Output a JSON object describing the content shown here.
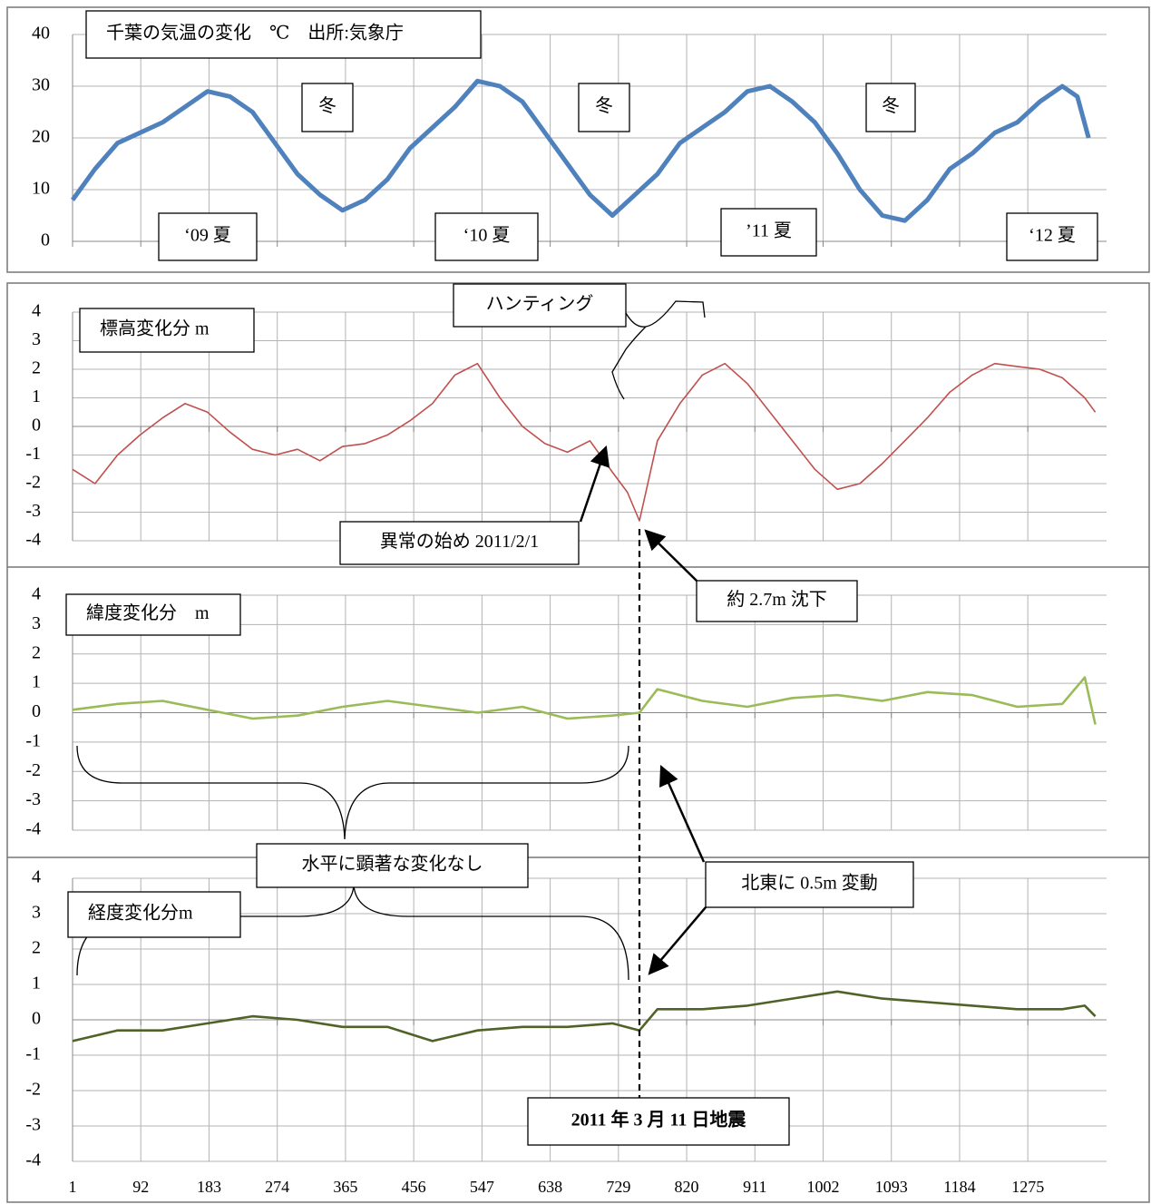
{
  "chart_data": [
    {
      "type": "line",
      "title": "千葉の気温の変化　℃　出所:気象庁",
      "annotations": [
        "冬",
        "冬",
        "冬",
        "‘09 夏",
        "‘10 夏",
        "’11 夏",
        "‘12 夏"
      ],
      "color": "#4f81bd",
      "grid": true,
      "x": [
        1,
        31,
        61,
        91,
        121,
        151,
        181,
        211,
        241,
        271,
        301,
        331,
        361,
        391,
        421,
        451,
        481,
        511,
        541,
        571,
        601,
        631,
        661,
        691,
        721,
        751,
        781,
        811,
        841,
        871,
        901,
        931,
        961,
        991,
        1021,
        1051,
        1081,
        1111,
        1141,
        1171,
        1201,
        1231,
        1261,
        1291,
        1321,
        1341,
        1356
      ],
      "values": [
        8,
        14,
        19,
        21,
        23,
        26,
        29,
        28,
        25,
        19,
        13,
        9,
        6,
        8,
        12,
        18,
        22,
        26,
        31,
        30,
        27,
        21,
        15,
        9,
        5,
        9,
        13,
        19,
        22,
        25,
        29,
        30,
        27,
        23,
        17,
        10,
        5,
        4,
        8,
        14,
        17,
        21,
        23,
        27,
        30,
        28,
        20
      ],
      "xlim": [
        1,
        1380
      ],
      "xticks": [
        1,
        92,
        183,
        274,
        365,
        456,
        547,
        638,
        729,
        820,
        911,
        1002,
        1093,
        1184,
        1275
      ],
      "ylim": [
        0,
        40
      ],
      "yticks": [
        0,
        10,
        20,
        30,
        40
      ]
    },
    {
      "type": "line",
      "title": "標高変化分 m",
      "annotations": [
        "ハンティング",
        "異常の始め 2011/2/1",
        "約 2.7m 沈下"
      ],
      "color": "#c0504d",
      "grid": true,
      "x": [
        1,
        31,
        61,
        91,
        121,
        151,
        181,
        211,
        241,
        271,
        301,
        331,
        361,
        391,
        421,
        451,
        481,
        511,
        541,
        571,
        601,
        631,
        661,
        691,
        721,
        741,
        757,
        781,
        811,
        841,
        871,
        901,
        931,
        961,
        991,
        1021,
        1051,
        1081,
        1111,
        1141,
        1171,
        1201,
        1231,
        1261,
        1291,
        1321,
        1351,
        1365
      ],
      "values": [
        -1.5,
        -2,
        -1,
        -0.3,
        0.3,
        0.8,
        0.5,
        -0.2,
        -0.8,
        -1,
        -0.8,
        -1.2,
        -0.7,
        -0.6,
        -0.3,
        0.2,
        0.8,
        1.8,
        2.2,
        1,
        0,
        -0.6,
        -0.9,
        -0.5,
        -1.6,
        -2.3,
        -3.3,
        -0.5,
        0.8,
        1.8,
        2.2,
        1.5,
        0.5,
        -0.5,
        -1.5,
        -2.2,
        -2,
        -1.3,
        -0.5,
        0.3,
        1.2,
        1.8,
        2.2,
        2.1,
        2,
        1.7,
        1,
        0.5
      ],
      "xlim": [
        1,
        1380
      ],
      "xticks": [
        1,
        92,
        183,
        274,
        365,
        456,
        547,
        638,
        729,
        820,
        911,
        1002,
        1093,
        1184,
        1275
      ],
      "ylim": [
        -4,
        4
      ],
      "yticks": [
        -4,
        -3,
        -2,
        -1,
        0,
        1,
        2,
        3,
        4
      ]
    },
    {
      "type": "line",
      "title": "緯度変化分　m",
      "color": "#9bbb59",
      "grid": true,
      "x": [
        1,
        61,
        121,
        181,
        241,
        301,
        361,
        421,
        481,
        541,
        601,
        661,
        721,
        757,
        781,
        841,
        901,
        961,
        1021,
        1081,
        1141,
        1201,
        1261,
        1321,
        1351,
        1365
      ],
      "values": [
        0.1,
        0.3,
        0.4,
        0.1,
        -0.2,
        -0.1,
        0.2,
        0.4,
        0.2,
        0,
        0.2,
        -0.2,
        -0.1,
        0,
        0.8,
        0.4,
        0.2,
        0.5,
        0.6,
        0.4,
        0.7,
        0.6,
        0.2,
        0.3,
        1.2,
        -0.4
      ],
      "xlim": [
        1,
        1380
      ],
      "xticks": [
        1,
        92,
        183,
        274,
        365,
        456,
        547,
        638,
        729,
        820,
        911,
        1002,
        1093,
        1184,
        1275
      ],
      "ylim": [
        -4,
        4
      ],
      "yticks": [
        -4,
        -3,
        -2,
        -1,
        0,
        1,
        2,
        3,
        4
      ]
    },
    {
      "type": "line",
      "title": "経度変化分m",
      "annotations": [
        "水平に顕著な変化なし",
        "北東に 0.5m 変動",
        "2011 年 3 月 11 日地震"
      ],
      "color": "#4f6228",
      "grid": true,
      "x": [
        1,
        61,
        121,
        181,
        241,
        301,
        361,
        421,
        481,
        541,
        601,
        661,
        721,
        757,
        781,
        841,
        901,
        961,
        1021,
        1081,
        1141,
        1201,
        1261,
        1321,
        1351,
        1365
      ],
      "values": [
        -0.6,
        -0.3,
        -0.3,
        -0.1,
        0.1,
        0,
        -0.2,
        -0.2,
        -0.6,
        -0.3,
        -0.2,
        -0.2,
        -0.1,
        -0.3,
        0.3,
        0.3,
        0.4,
        0.6,
        0.8,
        0.6,
        0.5,
        0.4,
        0.3,
        0.3,
        0.4,
        0.1
      ],
      "xlim": [
        1,
        1380
      ],
      "xticks": [
        1,
        92,
        183,
        274,
        365,
        456,
        547,
        638,
        729,
        820,
        911,
        1002,
        1093,
        1184,
        1275
      ],
      "ylim": [
        -4,
        4
      ],
      "yticks": [
        -4,
        -3,
        -2,
        -1,
        0,
        1,
        2,
        3,
        4
      ]
    }
  ]
}
